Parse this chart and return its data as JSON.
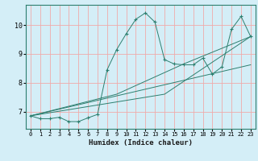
{
  "title": "",
  "xlabel": "Humidex (Indice chaleur)",
  "ylabel": "",
  "bg_color": "#d4eef7",
  "line_color": "#2d7f6f",
  "grid_color": "#f0aaaa",
  "xlim": [
    -0.5,
    23.5
  ],
  "ylim": [
    6.4,
    10.7
  ],
  "xticks": [
    0,
    1,
    2,
    3,
    4,
    5,
    6,
    7,
    8,
    9,
    10,
    11,
    12,
    13,
    14,
    15,
    16,
    17,
    18,
    19,
    20,
    21,
    22,
    23
  ],
  "yticks": [
    7,
    8,
    9,
    10
  ],
  "series1": {
    "x": [
      0,
      1,
      2,
      3,
      4,
      5,
      6,
      7,
      8,
      9,
      10,
      11,
      12,
      13,
      14,
      15,
      16,
      17,
      18,
      19,
      20,
      21,
      22,
      23
    ],
    "y": [
      6.85,
      6.75,
      6.75,
      6.8,
      6.65,
      6.65,
      6.78,
      6.9,
      8.45,
      9.15,
      9.7,
      10.2,
      10.42,
      10.1,
      8.8,
      8.65,
      8.62,
      8.62,
      8.85,
      8.3,
      8.55,
      9.85,
      10.3,
      9.6
    ]
  },
  "series2": {
    "x": [
      0,
      23
    ],
    "y": [
      6.85,
      8.62
    ]
  },
  "series3": {
    "x": [
      0,
      14,
      23
    ],
    "y": [
      6.85,
      7.6,
      9.6
    ]
  },
  "series4": {
    "x": [
      0,
      9,
      16,
      23
    ],
    "y": [
      6.85,
      7.6,
      8.65,
      9.6
    ]
  }
}
